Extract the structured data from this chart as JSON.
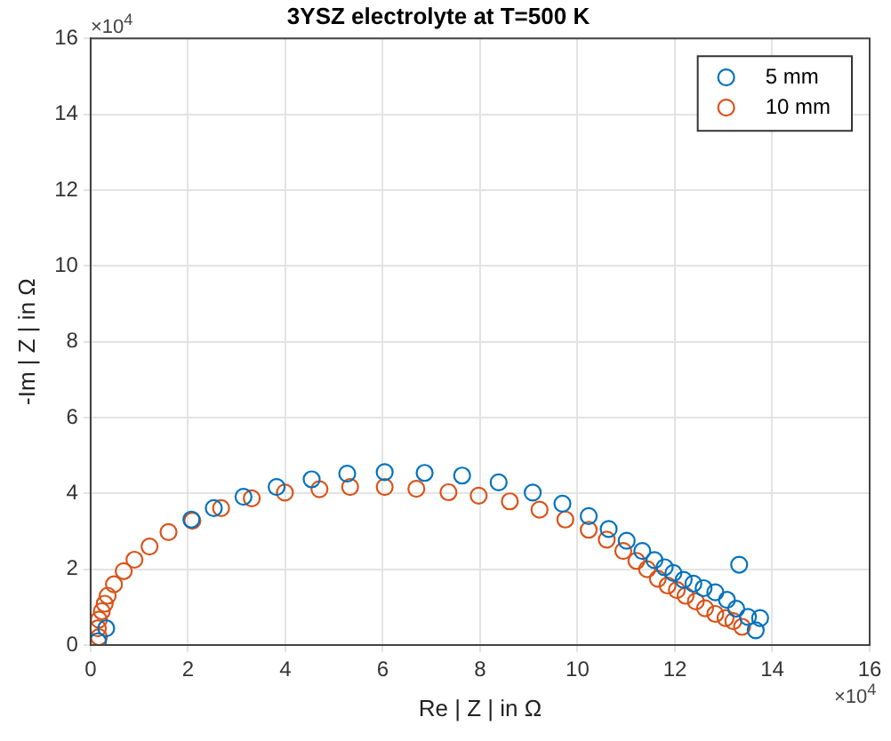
{
  "chart_data": {
    "type": "scatter",
    "title": "3YSZ electrolyte at T=500 K",
    "xlabel": "Re | Z | in Ω",
    "ylabel": "-Im | Z | in Ω",
    "annotations": [
      "×10$^{4}$",
      "×10$^{4}$"
    ],
    "xlim": [
      0,
      16
    ],
    "ylim": [
      0,
      16
    ],
    "xticks": [
      0,
      2,
      4,
      6,
      8,
      10,
      12,
      14,
      16
    ],
    "yticks": [
      0,
      2,
      4,
      6,
      8,
      10,
      12,
      14,
      16
    ],
    "grid": true,
    "legend": "top right",
    "marker": "circle",
    "series": [
      {
        "name": "5 mm",
        "color": "#0072bd",
        "x": [
          0.15,
          0.32,
          2.07,
          2.53,
          3.14,
          3.82,
          4.54,
          5.27,
          6.04,
          6.86,
          7.63,
          8.38,
          9.08,
          9.69,
          10.23,
          10.64,
          11.01,
          11.33,
          11.58,
          11.79,
          11.97,
          12.18,
          12.38,
          12.59,
          12.83,
          13.07,
          13.26,
          13.32,
          13.5,
          13.66,
          13.75
        ],
        "values": [
          0.1,
          0.44,
          3.31,
          3.61,
          3.91,
          4.17,
          4.37,
          4.52,
          4.56,
          4.54,
          4.47,
          4.29,
          4.02,
          3.73,
          3.4,
          3.06,
          2.75,
          2.48,
          2.24,
          2.05,
          1.9,
          1.72,
          1.62,
          1.5,
          1.39,
          1.19,
          0.96,
          2.12,
          0.74,
          0.39,
          0.71
        ]
      },
      {
        "name": "10 mm",
        "color": "#d95319",
        "x": [
          0.17,
          0.15,
          0.17,
          0.23,
          0.29,
          0.35,
          0.48,
          0.68,
          0.9,
          1.21,
          1.6,
          2.09,
          2.68,
          3.31,
          3.99,
          4.7,
          5.33,
          6.04,
          6.69,
          7.35,
          7.97,
          8.61,
          9.22,
          9.75,
          10.23,
          10.6,
          10.94,
          11.21,
          11.43,
          11.65,
          11.85,
          12.04,
          12.22,
          12.43,
          12.62,
          12.83,
          13.04,
          13.2,
          13.38
        ],
        "values": [
          0.21,
          0.44,
          0.67,
          0.89,
          1.09,
          1.3,
          1.6,
          1.95,
          2.25,
          2.6,
          2.98,
          3.28,
          3.61,
          3.87,
          4.02,
          4.11,
          4.17,
          4.17,
          4.12,
          4.03,
          3.94,
          3.79,
          3.57,
          3.31,
          3.04,
          2.78,
          2.48,
          2.22,
          2,
          1.75,
          1.57,
          1.45,
          1.3,
          1.15,
          0.97,
          0.82,
          0.71,
          0.63,
          0.48
        ]
      }
    ]
  }
}
